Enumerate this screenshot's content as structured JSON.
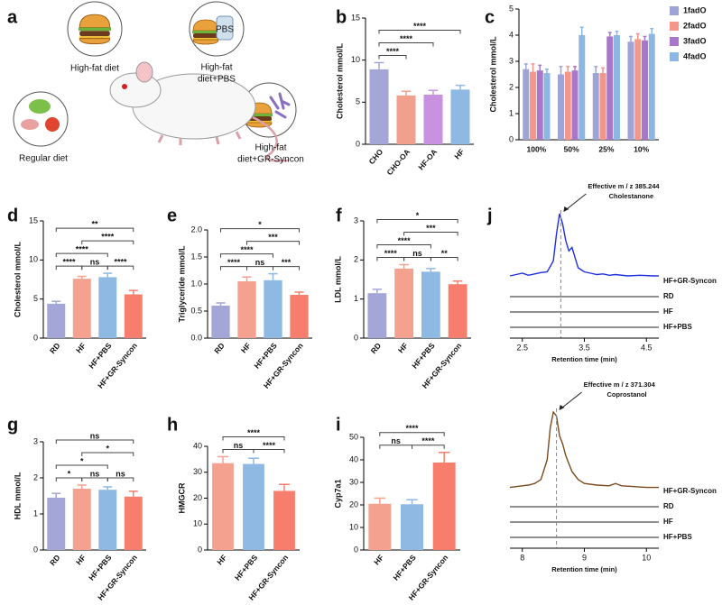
{
  "illustration": {
    "panel": "a",
    "labels": [
      [
        "High-fat diet"
      ],
      [
        "High-fat",
        "diet+PBS"
      ],
      [
        "Regular diet"
      ],
      [
        "High-fat",
        "diet+GR-Syncon"
      ]
    ],
    "bottle_label": "PBS"
  },
  "chart_data": [
    {
      "panel": "b",
      "type": "bar",
      "ylabel": "Cholesterol mmol/L",
      "categories": [
        "CHO",
        "CHO-OA",
        "HF-OA",
        "HF"
      ],
      "values": [
        8.9,
        5.8,
        5.9,
        6.5
      ],
      "errors": [
        0.8,
        0.5,
        0.5,
        0.5
      ],
      "colors": [
        "#a3a6d6",
        "#f2a08e",
        "#c892e0",
        "#8db9e3"
      ],
      "ylim": [
        0,
        15
      ],
      "yticks": [
        0,
        5,
        10,
        15
      ],
      "significance": [
        {
          "pair": [
            "CHO",
            "CHO-OA"
          ],
          "label": "****"
        },
        {
          "pair": [
            "CHO",
            "HF-OA"
          ],
          "label": "****"
        },
        {
          "pair": [
            "CHO",
            "HF"
          ],
          "label": "****"
        }
      ]
    },
    {
      "panel": "c",
      "type": "grouped_bar",
      "ylabel": "Cholesterol mmol/L",
      "categories": [
        "100%",
        "50%",
        "25%",
        "10%"
      ],
      "series": [
        {
          "name": "1fadO",
          "color": "#9ea4d6",
          "values": [
            2.7,
            2.5,
            2.55,
            3.75
          ],
          "errors": [
            0.2,
            0.3,
            0.25,
            0.2
          ]
        },
        {
          "name": "2fadO",
          "color": "#f4968a",
          "values": [
            2.6,
            2.6,
            2.55,
            3.85
          ],
          "errors": [
            0.3,
            0.2,
            0.2,
            0.2
          ]
        },
        {
          "name": "3fadO",
          "color": "#a877c9",
          "values": [
            2.65,
            2.65,
            3.95,
            3.8
          ],
          "errors": [
            0.2,
            0.15,
            0.15,
            0.15
          ]
        },
        {
          "name": "4fadO",
          "color": "#8db6e2",
          "values": [
            2.55,
            4.0,
            4.0,
            4.05
          ],
          "errors": [
            0.15,
            0.3,
            0.15,
            0.2
          ]
        }
      ],
      "ylim": [
        0,
        5
      ],
      "yticks": [
        0,
        1,
        2,
        3,
        4,
        5
      ],
      "legend": "right"
    },
    {
      "panel": "d",
      "type": "bar",
      "ylabel": "Cholesterol mmol/L",
      "categories": [
        "RD",
        "HF",
        "HF+PBS",
        "HF+GR-Syncon"
      ],
      "values": [
        4.4,
        7.6,
        7.8,
        5.6
      ],
      "errors": [
        0.3,
        0.3,
        0.5,
        0.5
      ],
      "colors": [
        "#a3a6d6",
        "#f4a18f",
        "#8db9e3",
        "#f77e6c"
      ],
      "ylim": [
        0,
        15
      ],
      "yticks": [
        0,
        5,
        10,
        15
      ],
      "significance": [
        {
          "pair": [
            "RD",
            "HF"
          ],
          "label": "****"
        },
        {
          "pair": [
            "HF",
            "HF+PBS"
          ],
          "label": "ns"
        },
        {
          "pair": [
            "HF+PBS",
            "HF+GR-Syncon"
          ],
          "label": "****"
        },
        {
          "pair": [
            "RD",
            "HF+PBS"
          ],
          "label": "****"
        },
        {
          "pair": [
            "HF",
            "HF+GR-Syncon"
          ],
          "label": "****"
        },
        {
          "pair": [
            "RD",
            "HF+GR-Syncon"
          ],
          "label": "**"
        }
      ]
    },
    {
      "panel": "e",
      "type": "bar",
      "ylabel": "Triglyceride mmol/L",
      "categories": [
        "RD",
        "HF",
        "HF+PBS",
        "HF+GR-Syncon"
      ],
      "values": [
        0.6,
        1.05,
        1.07,
        0.8
      ],
      "errors": [
        0.05,
        0.08,
        0.12,
        0.05
      ],
      "colors": [
        "#a3a6d6",
        "#f4a18f",
        "#8db9e3",
        "#f77e6c"
      ],
      "ylim": [
        0,
        2
      ],
      "yticks": [
        {
          "value": 0,
          "label": "0.0"
        },
        0.5,
        {
          "value": 1,
          "label": "1.0"
        },
        1.5,
        {
          "value": 2,
          "label": "2.0"
        }
      ],
      "significance": [
        {
          "pair": [
            "RD",
            "HF"
          ],
          "label": "****"
        },
        {
          "pair": [
            "HF",
            "HF+PBS"
          ],
          "label": "ns"
        },
        {
          "pair": [
            "HF+PBS",
            "HF+GR-Syncon"
          ],
          "label": "***"
        },
        {
          "pair": [
            "RD",
            "HF+PBS"
          ],
          "label": "****"
        },
        {
          "pair": [
            "HF",
            "HF+GR-Syncon"
          ],
          "label": "***"
        },
        {
          "pair": [
            "RD",
            "HF+GR-Syncon"
          ],
          "label": "*"
        }
      ]
    },
    {
      "panel": "f",
      "type": "bar",
      "ylabel": "LDL mmol/L",
      "categories": [
        "RD",
        "HF",
        "HF+PBS",
        "HF+GR-Syncon"
      ],
      "values": [
        1.15,
        1.78,
        1.7,
        1.38
      ],
      "errors": [
        0.1,
        0.1,
        0.08,
        0.08
      ],
      "colors": [
        "#a3a6d6",
        "#f4a18f",
        "#8db9e3",
        "#f77e6c"
      ],
      "ylim": [
        0,
        3
      ],
      "yticks": [
        0,
        1,
        2,
        3
      ],
      "significance": [
        {
          "pair": [
            "RD",
            "HF"
          ],
          "label": "****"
        },
        {
          "pair": [
            "HF",
            "HF+PBS"
          ],
          "label": "ns"
        },
        {
          "pair": [
            "HF+PBS",
            "HF+GR-Syncon"
          ],
          "label": "**"
        },
        {
          "pair": [
            "RD",
            "HF+PBS"
          ],
          "label": "****"
        },
        {
          "pair": [
            "HF",
            "HF+GR-Syncon"
          ],
          "label": "***"
        },
        {
          "pair": [
            "RD",
            "HF+GR-Syncon"
          ],
          "label": "*"
        }
      ]
    },
    {
      "panel": "g",
      "type": "bar",
      "ylabel": "HDL mmol/L",
      "categories": [
        "RD",
        "HF",
        "HF+PBS",
        "HF+GR-Syncon"
      ],
      "values": [
        1.45,
        1.7,
        1.67,
        1.48
      ],
      "errors": [
        0.12,
        0.1,
        0.08,
        0.15
      ],
      "colors": [
        "#a3a6d6",
        "#f4a18f",
        "#8db9e3",
        "#f77e6c"
      ],
      "ylim": [
        0,
        3
      ],
      "yticks": [
        0,
        1,
        2,
        3
      ],
      "significance": [
        {
          "pair": [
            "RD",
            "HF"
          ],
          "label": "*"
        },
        {
          "pair": [
            "HF",
            "HF+PBS"
          ],
          "label": "ns"
        },
        {
          "pair": [
            "HF+PBS",
            "HF+GR-Syncon"
          ],
          "label": "ns"
        },
        {
          "pair": [
            "RD",
            "HF+PBS"
          ],
          "label": "*"
        },
        {
          "pair": [
            "HF",
            "HF+GR-Syncon"
          ],
          "label": "*"
        },
        {
          "pair": [
            "RD",
            "HF+GR-Syncon"
          ],
          "label": "ns"
        }
      ]
    },
    {
      "panel": "h",
      "type": "bar",
      "ylabel": "HMGCR",
      "categories": [
        "HF",
        "HF+PBS",
        "HF+GR-Syncon"
      ],
      "values": [
        33.5,
        33.2,
        22.8
      ],
      "errors": [
        2.5,
        2.2,
        2.5
      ],
      "colors": [
        "#f4a18f",
        "#8db9e3",
        "#f77e6c"
      ],
      "ylim": [
        0,
        40
      ],
      "yticks": [
        0,
        10,
        20,
        30,
        40
      ],
      "significance": [
        {
          "pair": [
            "HF",
            "HF+PBS"
          ],
          "label": "ns"
        },
        {
          "pair": [
            "HF+PBS",
            "HF+GR-Syncon"
          ],
          "label": "****"
        },
        {
          "pair": [
            "HF",
            "HF+GR-Syncon"
          ],
          "label": "****"
        }
      ]
    },
    {
      "panel": "i",
      "type": "bar",
      "ylabel": "Cyp7a1",
      "categories": [
        "HF",
        "HF+PBS",
        "HF+GR-Syncon"
      ],
      "values": [
        20.5,
        20.3,
        38.8
      ],
      "errors": [
        2.5,
        2.0,
        4.5
      ],
      "colors": [
        "#f4a18f",
        "#8db9e3",
        "#f77e6c"
      ],
      "ylim": [
        0,
        50
      ],
      "yticks": [
        0,
        10,
        20,
        30,
        40,
        50
      ],
      "significance": [
        {
          "pair": [
            "HF",
            "HF+PBS"
          ],
          "label": "ns"
        },
        {
          "pair": [
            "HF+PBS",
            "HF+GR-Syncon"
          ],
          "label": "****"
        },
        {
          "pair": [
            "HF",
            "HF+GR-Syncon"
          ],
          "label": "****"
        }
      ]
    },
    {
      "panel": "j",
      "type": "chromatogram",
      "xlabel": "Retention time (min)",
      "annotation": [
        "Effective m / z 385.244",
        "Cholestanone"
      ],
      "reference_x": 3.12,
      "x": [
        2.3,
        2.4,
        2.5,
        2.6,
        2.7,
        2.8,
        2.9,
        3.0,
        3.05,
        3.1,
        3.15,
        3.2,
        3.25,
        3.3,
        3.35,
        3.4,
        3.5,
        3.6,
        3.7,
        3.8,
        3.9,
        4.0,
        4.2,
        4.4,
        4.6,
        4.7
      ],
      "series": [
        {
          "name": "HF+GR-Syncon",
          "color": "#1f2fe0",
          "values": [
            0.08,
            0.1,
            0.12,
            0.09,
            0.11,
            0.13,
            0.14,
            0.3,
            0.7,
            1.0,
            0.85,
            0.6,
            0.45,
            0.5,
            0.35,
            0.2,
            0.14,
            0.12,
            0.1,
            0.11,
            0.09,
            0.1,
            0.08,
            0.09,
            0.08,
            0.08
          ]
        },
        {
          "name": "RD",
          "color": "#222222",
          "values": [
            0,
            0,
            0,
            0,
            0,
            0,
            0,
            0,
            0,
            0,
            0,
            0,
            0,
            0,
            0,
            0,
            0,
            0,
            0,
            0,
            0,
            0,
            0,
            0,
            0,
            0
          ]
        },
        {
          "name": "HF",
          "color": "#222222",
          "values": [
            0,
            0,
            0,
            0,
            0,
            0,
            0,
            0,
            0,
            0,
            0,
            0,
            0,
            0,
            0,
            0,
            0,
            0,
            0,
            0,
            0,
            0,
            0,
            0,
            0,
            0
          ]
        },
        {
          "name": "HF+PBS",
          "color": "#222222",
          "values": [
            0,
            0,
            0,
            0,
            0,
            0,
            0,
            0,
            0,
            0,
            0,
            0,
            0,
            0,
            0,
            0,
            0,
            0,
            0,
            0,
            0,
            0,
            0,
            0,
            0,
            0
          ]
        }
      ],
      "xlim": [
        2.3,
        4.7
      ],
      "xticks": [
        2.5,
        3.5,
        4.5
      ],
      "ylim": [
        0,
        1
      ]
    },
    {
      "type": "chromatogram",
      "xlabel": "Retention time (min)",
      "annotation": [
        "Effective m / z 371.304",
        "Coprostanol"
      ],
      "reference_x": 8.55,
      "x": [
        7.8,
        7.9,
        8.0,
        8.1,
        8.2,
        8.3,
        8.4,
        8.45,
        8.5,
        8.55,
        8.6,
        8.65,
        8.7,
        8.75,
        8.8,
        8.9,
        9.0,
        9.2,
        9.4,
        9.5,
        9.6,
        9.8,
        10.0,
        10.2
      ],
      "series": [
        {
          "name": "HF+GR-Syncon",
          "color": "#7a4a1e",
          "values": [
            0.05,
            0.06,
            0.07,
            0.08,
            0.1,
            0.15,
            0.4,
            0.8,
            1.0,
            0.95,
            0.7,
            0.6,
            0.45,
            0.35,
            0.25,
            0.15,
            0.1,
            0.08,
            0.07,
            0.1,
            0.07,
            0.06,
            0.05,
            0.05
          ]
        },
        {
          "name": "RD",
          "color": "#222222",
          "values": [
            0,
            0,
            0,
            0,
            0,
            0,
            0,
            0,
            0,
            0,
            0,
            0,
            0,
            0,
            0,
            0,
            0,
            0,
            0,
            0,
            0,
            0,
            0,
            0
          ]
        },
        {
          "name": "HF",
          "color": "#222222",
          "values": [
            0,
            0,
            0,
            0,
            0,
            0,
            0,
            0,
            0,
            0,
            0,
            0,
            0,
            0,
            0,
            0,
            0,
            0,
            0,
            0,
            0,
            0,
            0,
            0
          ]
        },
        {
          "name": "HF+PBS",
          "color": "#222222",
          "values": [
            0,
            0,
            0,
            0,
            0,
            0,
            0,
            0,
            0,
            0,
            0,
            0,
            0,
            0,
            0,
            0,
            0,
            0,
            0,
            0,
            0,
            0,
            0,
            0
          ]
        }
      ],
      "xlim": [
        7.8,
        10.2
      ],
      "xticks": [
        8,
        9,
        10
      ],
      "ylim": [
        0,
        1
      ]
    }
  ]
}
